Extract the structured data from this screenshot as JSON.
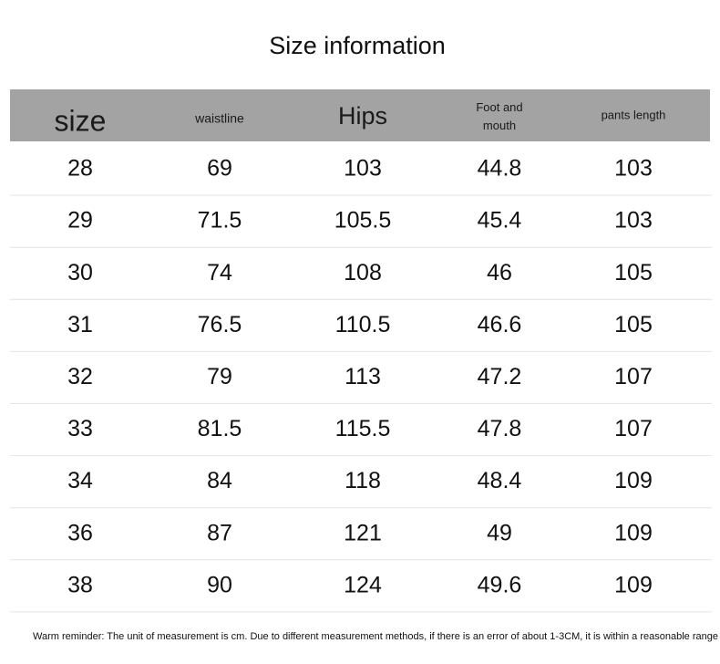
{
  "title": "Size information",
  "table": {
    "header": [
      "size",
      "waistline",
      "Hips",
      "Foot and mouth",
      "pants length"
    ],
    "rows": [
      [
        "28",
        "69",
        "103",
        "44.8",
        "103"
      ],
      [
        "29",
        "71.5",
        "105.5",
        "45.4",
        "103"
      ],
      [
        "30",
        "74",
        "108",
        "46",
        "105"
      ],
      [
        "31",
        "76.5",
        "110.5",
        "46.6",
        "105"
      ],
      [
        "32",
        "79",
        "113",
        "47.2",
        "107"
      ],
      [
        "33",
        "81.5",
        "115.5",
        "47.8",
        "107"
      ],
      [
        "34",
        "84",
        "118",
        "48.4",
        "109"
      ],
      [
        "36",
        "87",
        "121",
        "49",
        "109"
      ],
      [
        "38",
        "90",
        "124",
        "49.6",
        "109"
      ]
    ]
  },
  "note": "Warm reminder: The unit of measurement is cm. Due to different measurement methods, if there is an error of about 1-3CM, it is within a reasonable range"
}
